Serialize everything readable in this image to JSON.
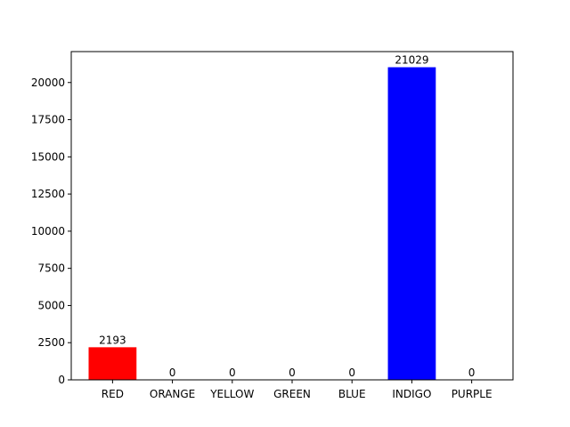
{
  "chart_data": {
    "type": "bar",
    "title": "",
    "xlabel": "",
    "ylabel": "",
    "categories": [
      "RED",
      "ORANGE",
      "YELLOW",
      "GREEN",
      "BLUE",
      "INDIGO",
      "PURPLE"
    ],
    "values": [
      2193,
      0,
      0,
      0,
      0,
      21029,
      0
    ],
    "data_labels": [
      "2193",
      "0",
      "0",
      "0",
      "0",
      "21029",
      "0"
    ],
    "bar_colors": [
      "#ff0000",
      "#ffa500",
      "#ffff00",
      "#008000",
      "#0000ff",
      "#0000ff",
      "#800080"
    ],
    "ylim": [
      0,
      22080
    ],
    "yticks": [
      0,
      2500,
      5000,
      7500,
      10000,
      12500,
      15000,
      17500,
      20000
    ],
    "grid": false,
    "legend": "none"
  }
}
